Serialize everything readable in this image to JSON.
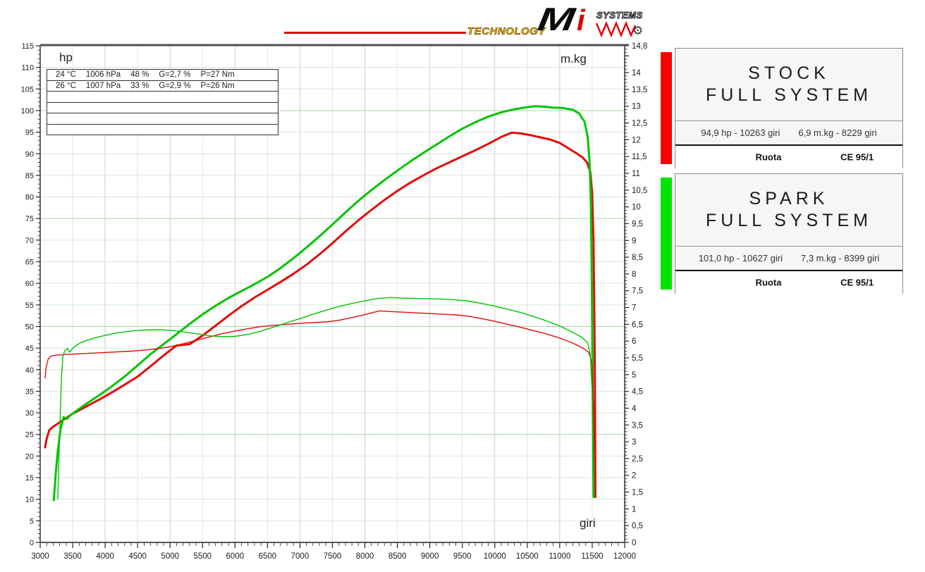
{
  "logo": {
    "technology": "TECHNOLOGY",
    "mi_m": "M",
    "mi_i": "i",
    "systems": "SYSTEMS",
    "line_color": "#e10000",
    "wave_color": "#e60000"
  },
  "chart": {
    "hp_label": "hp",
    "mkg_label": "m.kg",
    "giri_label": "giri",
    "info_rows": [
      [
        "24 °C",
        "1006 hPa",
        "48 %",
        "G=2,7 %",
        "P=27 Nm"
      ],
      [
        "26 °C",
        "1007 hPa",
        "33 %",
        "G=2,9 %",
        "P=26 Nm"
      ],
      [],
      [],
      [],
      []
    ]
  },
  "legend": [
    {
      "accent_color": "#fb0000",
      "title_line1": "STOCK",
      "title_line2": "FULL SYSTEM",
      "stats_left": "94,9 hp - 10263 giri",
      "stats_right": "6,9 m.kg - 8229 giri",
      "footer_left": "Ruota",
      "footer_right": "CE 95/1"
    },
    {
      "accent_color": "#00e400",
      "title_line1": "SPARK",
      "title_line2": "FULL SYSTEM",
      "stats_left": "101,0 hp - 10627 giri",
      "stats_right": "7,3 m.kg - 8399 giri",
      "footer_left": "Ruota",
      "footer_right": "CE 95/1"
    }
  ],
  "chart_data": {
    "type": "line",
    "title": "Dyno comparison: STOCK FULL SYSTEM vs SPARK FULL SYSTEM",
    "xlabel": "giri",
    "ylabel_left": "hp",
    "ylabel_right": "m.kg",
    "x_range": [
      3000,
      12000
    ],
    "grid": "on",
    "left_axis": {
      "range": [
        0,
        115
      ],
      "minor_step": 1,
      "major_step": 5,
      "ticks": [
        [
          0,
          "0"
        ],
        [
          5,
          "5"
        ],
        [
          10,
          "10"
        ],
        [
          15,
          "15"
        ],
        [
          20,
          "20"
        ],
        [
          25,
          "25"
        ],
        [
          30,
          "30"
        ],
        [
          35,
          "35"
        ],
        [
          40,
          "40"
        ],
        [
          45,
          "45"
        ],
        [
          50,
          "50"
        ],
        [
          55,
          "55"
        ],
        [
          60,
          "60"
        ],
        [
          65,
          "65"
        ],
        [
          70,
          "70"
        ],
        [
          75,
          "75"
        ],
        [
          80,
          "80"
        ],
        [
          85,
          "85"
        ],
        [
          90,
          "90"
        ],
        [
          95,
          "95"
        ],
        [
          100,
          "100"
        ],
        [
          105,
          "105"
        ],
        [
          110,
          "110"
        ],
        [
          115,
          "115"
        ]
      ]
    },
    "right_axis": {
      "range": [
        0,
        14.8
      ],
      "minor_step": 0.1,
      "major_step": 0.5,
      "ticks": [
        [
          0,
          "0"
        ],
        [
          0.5,
          "0,5"
        ],
        [
          1,
          "1"
        ],
        [
          1.5,
          "1,5"
        ],
        [
          2,
          "2"
        ],
        [
          2.5,
          "2,5"
        ],
        [
          3,
          "3"
        ],
        [
          3.5,
          "3,5"
        ],
        [
          4,
          "4"
        ],
        [
          4.5,
          "4,5"
        ],
        [
          5,
          "5"
        ],
        [
          5.5,
          "5,5"
        ],
        [
          6,
          "6"
        ],
        [
          6.5,
          "6,5"
        ],
        [
          7,
          "7"
        ],
        [
          7.5,
          "7,5"
        ],
        [
          8,
          "8"
        ],
        [
          8.5,
          "8,5"
        ],
        [
          9,
          "9"
        ],
        [
          9.5,
          "9,5"
        ],
        [
          10,
          "10"
        ],
        [
          10.5,
          "10,5"
        ],
        [
          11,
          "11"
        ],
        [
          11.5,
          "11,5"
        ],
        [
          12,
          "12"
        ],
        [
          12.5,
          "12,5"
        ],
        [
          13,
          "13"
        ],
        [
          13.5,
          "13,5"
        ],
        [
          14,
          "14"
        ],
        [
          14.8,
          "14,8"
        ]
      ]
    },
    "x_axis": {
      "minor_step": 100,
      "major_step": 500,
      "ticks": [
        [
          3000,
          "3000"
        ],
        [
          3500,
          "3500"
        ],
        [
          4000,
          "4000"
        ],
        [
          4500,
          "4500"
        ],
        [
          5000,
          "5000"
        ],
        [
          5500,
          "5500"
        ],
        [
          6000,
          "6000"
        ],
        [
          6500,
          "6500"
        ],
        [
          7000,
          "7000"
        ],
        [
          7500,
          "7500"
        ],
        [
          8000,
          "8000"
        ],
        [
          8500,
          "8500"
        ],
        [
          9000,
          "9000"
        ],
        [
          9500,
          "9500"
        ],
        [
          10000,
          "10000"
        ],
        [
          10500,
          "10500"
        ],
        [
          11000,
          "11000"
        ],
        [
          11500,
          "11500"
        ],
        [
          12000,
          "12000"
        ]
      ]
    },
    "series": [
      {
        "name": "STOCK FULL SYSTEM power (hp)",
        "axis": "left",
        "color": "#e30b0b",
        "width": 3,
        "peak": "94,9 hp - 10263 giri",
        "points": [
          [
            3075,
            22
          ],
          [
            3100,
            24
          ],
          [
            3140,
            26
          ],
          [
            3200,
            26.8
          ],
          [
            3300,
            27.8
          ],
          [
            3400,
            28.8
          ],
          [
            3500,
            29.8
          ],
          [
            3700,
            31.4
          ],
          [
            3900,
            33
          ],
          [
            4100,
            34.7
          ],
          [
            4300,
            36.5
          ],
          [
            4500,
            38.4
          ],
          [
            4700,
            40.8
          ],
          [
            4900,
            43.3
          ],
          [
            5100,
            45.6
          ],
          [
            5300,
            45.9
          ],
          [
            5500,
            47.9
          ],
          [
            5700,
            50.2
          ],
          [
            5900,
            52.5
          ],
          [
            6100,
            54.7
          ],
          [
            6300,
            56.7
          ],
          [
            6500,
            58.5
          ],
          [
            6700,
            60.3
          ],
          [
            6900,
            62.2
          ],
          [
            7100,
            64.3
          ],
          [
            7300,
            66.7
          ],
          [
            7500,
            69.3
          ],
          [
            7700,
            72
          ],
          [
            7900,
            74.6
          ],
          [
            8100,
            77
          ],
          [
            8300,
            79.3
          ],
          [
            8500,
            81.4
          ],
          [
            8700,
            83.3
          ],
          [
            8900,
            85
          ],
          [
            9100,
            86.6
          ],
          [
            9300,
            88
          ],
          [
            9500,
            89.4
          ],
          [
            9700,
            90.8
          ],
          [
            9900,
            92.3
          ],
          [
            10100,
            93.9
          ],
          [
            10263,
            94.9
          ],
          [
            10400,
            94.7
          ],
          [
            10550,
            94.3
          ],
          [
            10700,
            93.8
          ],
          [
            10850,
            93.3
          ],
          [
            11000,
            92.5
          ],
          [
            11150,
            91.1
          ],
          [
            11250,
            90.2
          ],
          [
            11350,
            89.2
          ],
          [
            11420,
            88
          ],
          [
            11470,
            85.8
          ],
          [
            11500,
            81
          ],
          [
            11520,
            70
          ],
          [
            11535,
            50
          ],
          [
            11545,
            30
          ],
          [
            11550,
            10.5
          ]
        ]
      },
      {
        "name": "SPARK FULL SYSTEM power (hp)",
        "axis": "left",
        "color": "#00c400",
        "width": 3,
        "peak": "101,0 hp - 10627 giri",
        "points": [
          [
            3210,
            9.8
          ],
          [
            3240,
            16
          ],
          [
            3270,
            21
          ],
          [
            3310,
            26
          ],
          [
            3360,
            29
          ],
          [
            3410,
            28.6
          ],
          [
            3460,
            29.4
          ],
          [
            3550,
            30.4
          ],
          [
            3700,
            32
          ],
          [
            3900,
            34
          ],
          [
            4100,
            36.1
          ],
          [
            4300,
            38.4
          ],
          [
            4500,
            41
          ],
          [
            4700,
            43.6
          ],
          [
            4900,
            45.9
          ],
          [
            5100,
            48.2
          ],
          [
            5300,
            50.6
          ],
          [
            5500,
            52.8
          ],
          [
            5700,
            54.8
          ],
          [
            5900,
            56.6
          ],
          [
            6100,
            58.2
          ],
          [
            6300,
            59.8
          ],
          [
            6500,
            61.5
          ],
          [
            6700,
            63.5
          ],
          [
            6900,
            65.8
          ],
          [
            7100,
            68.3
          ],
          [
            7300,
            70.9
          ],
          [
            7500,
            73.6
          ],
          [
            7700,
            76.4
          ],
          [
            7900,
            79.1
          ],
          [
            8100,
            81.6
          ],
          [
            8300,
            83.9
          ],
          [
            8500,
            86.1
          ],
          [
            8700,
            88.2
          ],
          [
            8900,
            90.2
          ],
          [
            9100,
            92.1
          ],
          [
            9300,
            94
          ],
          [
            9500,
            95.8
          ],
          [
            9700,
            97.3
          ],
          [
            9900,
            98.6
          ],
          [
            10100,
            99.6
          ],
          [
            10300,
            100.3
          ],
          [
            10500,
            100.8
          ],
          [
            10627,
            101
          ],
          [
            10750,
            100.9
          ],
          [
            10900,
            100.7
          ],
          [
            11050,
            100.6
          ],
          [
            11200,
            100.2
          ],
          [
            11300,
            99.3
          ],
          [
            11380,
            97.5
          ],
          [
            11430,
            94
          ],
          [
            11460,
            88
          ],
          [
            11480,
            78
          ],
          [
            11495,
            60
          ],
          [
            11505,
            40
          ],
          [
            11515,
            20
          ],
          [
            11520,
            10.5
          ]
        ]
      },
      {
        "name": "STOCK FULL SYSTEM torque (m.kg)",
        "axis": "right",
        "color": "#e30b0b",
        "width": 1.4,
        "peak": "6,9 m.kg - 8229 giri",
        "points": [
          [
            3075,
            4.9
          ],
          [
            3090,
            5.2
          ],
          [
            3120,
            5.45
          ],
          [
            3160,
            5.55
          ],
          [
            3250,
            5.58
          ],
          [
            3400,
            5.6
          ],
          [
            3600,
            5.62
          ],
          [
            3800,
            5.64
          ],
          [
            4000,
            5.66
          ],
          [
            4200,
            5.68
          ],
          [
            4400,
            5.7
          ],
          [
            4600,
            5.73
          ],
          [
            4800,
            5.77
          ],
          [
            5000,
            5.83
          ],
          [
            5200,
            5.92
          ],
          [
            5400,
            6.02
          ],
          [
            5600,
            6.12
          ],
          [
            5800,
            6.22
          ],
          [
            6000,
            6.3
          ],
          [
            6200,
            6.37
          ],
          [
            6400,
            6.43
          ],
          [
            6600,
            6.47
          ],
          [
            6800,
            6.5
          ],
          [
            7000,
            6.53
          ],
          [
            7200,
            6.55
          ],
          [
            7400,
            6.57
          ],
          [
            7600,
            6.62
          ],
          [
            7800,
            6.7
          ],
          [
            8000,
            6.79
          ],
          [
            8100,
            6.84
          ],
          [
            8229,
            6.9
          ],
          [
            8400,
            6.88
          ],
          [
            8600,
            6.86
          ],
          [
            8800,
            6.84
          ],
          [
            9000,
            6.82
          ],
          [
            9200,
            6.8
          ],
          [
            9400,
            6.78
          ],
          [
            9600,
            6.74
          ],
          [
            9800,
            6.67
          ],
          [
            10000,
            6.59
          ],
          [
            10200,
            6.5
          ],
          [
            10400,
            6.41
          ],
          [
            10600,
            6.31
          ],
          [
            10800,
            6.21
          ],
          [
            11000,
            6.09
          ],
          [
            11200,
            5.94
          ],
          [
            11350,
            5.8
          ],
          [
            11450,
            5.66
          ],
          [
            11500,
            5.3
          ],
          [
            11520,
            4
          ],
          [
            11535,
            2.6
          ],
          [
            11545,
            1.4
          ]
        ]
      },
      {
        "name": "SPARK FULL SYSTEM torque (m.kg)",
        "axis": "right",
        "color": "#00c400",
        "width": 1.4,
        "peak": "7,3 m.kg - 8399 giri",
        "points": [
          [
            3270,
            1.3
          ],
          [
            3290,
            2.6
          ],
          [
            3310,
            3.9
          ],
          [
            3330,
            5
          ],
          [
            3350,
            5.55
          ],
          [
            3380,
            5.72
          ],
          [
            3420,
            5.78
          ],
          [
            3455,
            5.67
          ],
          [
            3500,
            5.79
          ],
          [
            3600,
            5.93
          ],
          [
            3700,
            6.01
          ],
          [
            3850,
            6.1
          ],
          [
            4000,
            6.17
          ],
          [
            4200,
            6.25
          ],
          [
            4400,
            6.3
          ],
          [
            4600,
            6.33
          ],
          [
            4800,
            6.34
          ],
          [
            5000,
            6.32
          ],
          [
            5200,
            6.28
          ],
          [
            5400,
            6.22
          ],
          [
            5600,
            6.16
          ],
          [
            5800,
            6.13
          ],
          [
            6000,
            6.14
          ],
          [
            6200,
            6.2
          ],
          [
            6400,
            6.3
          ],
          [
            6600,
            6.42
          ],
          [
            6800,
            6.55
          ],
          [
            7000,
            6.67
          ],
          [
            7200,
            6.8
          ],
          [
            7400,
            6.92
          ],
          [
            7600,
            7.03
          ],
          [
            7800,
            7.12
          ],
          [
            8000,
            7.2
          ],
          [
            8200,
            7.27
          ],
          [
            8399,
            7.3
          ],
          [
            8600,
            7.28
          ],
          [
            8800,
            7.27
          ],
          [
            9000,
            7.26
          ],
          [
            9200,
            7.25
          ],
          [
            9400,
            7.23
          ],
          [
            9600,
            7.19
          ],
          [
            9800,
            7.12
          ],
          [
            10000,
            7.04
          ],
          [
            10200,
            6.95
          ],
          [
            10400,
            6.85
          ],
          [
            10600,
            6.73
          ],
          [
            10800,
            6.6
          ],
          [
            11000,
            6.45
          ],
          [
            11200,
            6.26
          ],
          [
            11350,
            6.1
          ],
          [
            11430,
            5.95
          ],
          [
            11470,
            5.6
          ],
          [
            11500,
            4.5
          ],
          [
            11515,
            3
          ],
          [
            11525,
            1.6
          ]
        ]
      }
    ]
  }
}
